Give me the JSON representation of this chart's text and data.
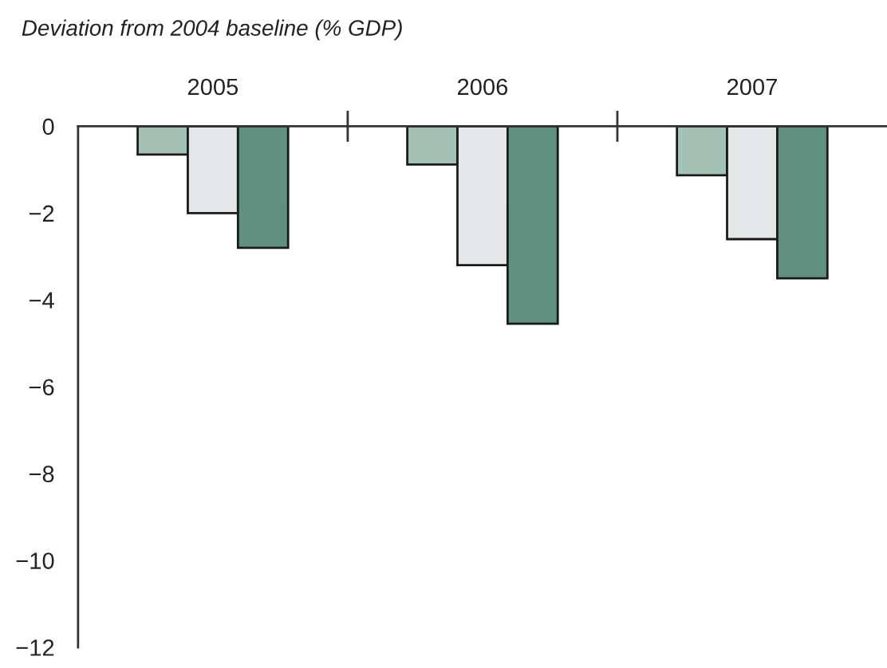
{
  "chart_data": {
    "type": "bar",
    "ylabel": "Deviation from 2004 baseline (% GDP)",
    "categories": [
      "2005",
      "2006",
      "2007"
    ],
    "series": [
      {
        "color": "#a3c2b5",
        "values": [
          -0.65,
          -0.88,
          -1.13
        ]
      },
      {
        "color": "#e5e6e8",
        "values": [
          -2.0,
          -3.2,
          -2.6
        ]
      },
      {
        "color": "#5f9080",
        "values": [
          -2.8,
          -4.55,
          -3.5
        ]
      }
    ],
    "ylim": [
      -12,
      0
    ],
    "yticks": [
      {
        "value": 0,
        "label": "0"
      },
      {
        "value": -2,
        "label": "−2"
      },
      {
        "value": -4,
        "label": "−4"
      },
      {
        "value": -6,
        "label": "−6"
      },
      {
        "value": -8,
        "label": "−8"
      },
      {
        "value": -10,
        "label": "−10"
      },
      {
        "value": -12,
        "label": "−12"
      }
    ],
    "grid": false,
    "legend": false
  }
}
